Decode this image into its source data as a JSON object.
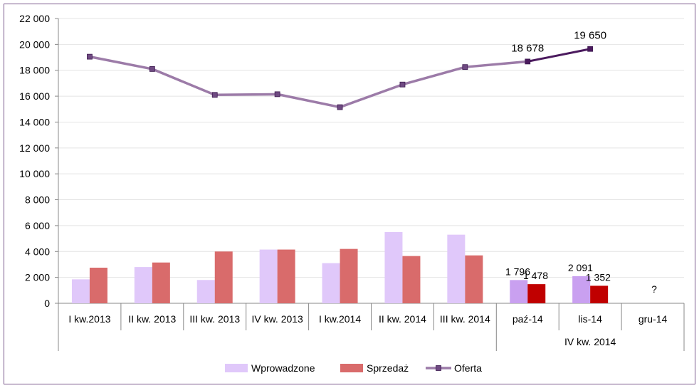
{
  "chart_data": {
    "type": "bar",
    "title": "",
    "xlabel": "",
    "ylabel": "",
    "ylim": [
      0,
      22000
    ],
    "yticks": [
      "0",
      "2 000",
      "4 000",
      "6 000",
      "8 000",
      "10 000",
      "12 000",
      "14 000",
      "16 000",
      "18 000",
      "20 000",
      "22 000"
    ],
    "ytick_values": [
      0,
      2000,
      4000,
      6000,
      8000,
      10000,
      12000,
      14000,
      16000,
      18000,
      20000,
      22000
    ],
    "categories": [
      "I kw.2013",
      "II kw. 2013",
      "III kw. 2013",
      "IV kw. 2013",
      "I kw.2014",
      "II kw. 2014",
      "III kw. 2014",
      "paź-14",
      "lis-14",
      "gru-14"
    ],
    "group_label": "IV kw. 2014",
    "missing_label": "?",
    "grid": true,
    "legend_position": "bottom",
    "series": [
      {
        "name": "Wprowadzone",
        "kind": "bar",
        "color": "#e0c8fa",
        "highlight_color": "#c9a0f0",
        "values": [
          1850,
          2800,
          1800,
          4150,
          3100,
          5500,
          5300,
          1796,
          2091,
          null
        ],
        "data_labels": [
          null,
          null,
          null,
          null,
          null,
          null,
          null,
          "1 796",
          "2 091",
          null
        ]
      },
      {
        "name": "Sprzedaż",
        "kind": "bar",
        "color": "#d96b6b",
        "highlight_color": "#c00000",
        "values": [
          2750,
          3150,
          4000,
          4150,
          4200,
          3650,
          3700,
          1478,
          1352,
          null
        ],
        "data_labels": [
          null,
          null,
          null,
          null,
          null,
          null,
          null,
          "1 478",
          "1 352",
          null
        ]
      },
      {
        "name": "Oferta",
        "kind": "line",
        "color": "#9c7ba8",
        "highlight_color": "#4b1a5e",
        "values": [
          19050,
          18100,
          16100,
          16150,
          15150,
          16900,
          18250,
          18678,
          19650,
          null
        ],
        "data_labels": [
          null,
          null,
          null,
          null,
          null,
          null,
          null,
          "18 678",
          "19 650",
          null
        ]
      }
    ]
  }
}
